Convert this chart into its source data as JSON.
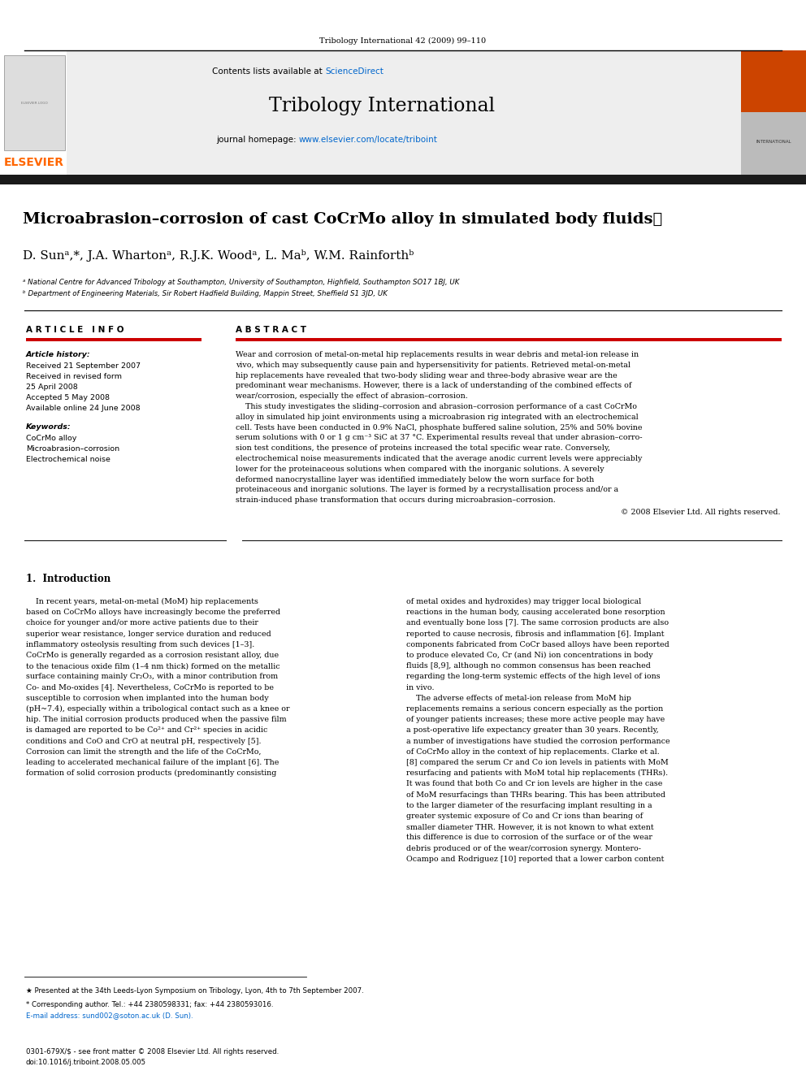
{
  "bg_color": "#ffffff",
  "page_width": 9.92,
  "page_height": 13.23,
  "journal_ref": "Tribology International 42 (2009) 99–110",
  "journal_name": "Tribology International",
  "contents_text": "Contents lists available at ScienceDirect",
  "sciencedirect_color": "#0066cc",
  "journal_homepage": "journal homepage: www.elsevier.com/locate/triboint",
  "homepage_color": "#0066cc",
  "elsevier_color": "#ff6600",
  "title": "Microabrasion–corrosion of cast CoCrMo alloy in simulated body fluids",
  "title_star": "★",
  "authors": "D. Sunᵃ,*, J.A. Whartonᵃ, R.J.K. Woodᵃ, L. Maᵇ, W.M. Rainforthᵇ",
  "affil_a": "ᵃ National Centre for Advanced Tribology at Southampton, University of Southampton, Highfield, Southampton SO17 1BJ, UK",
  "affil_b": "ᵇ Department of Engineering Materials, Sir Robert Hadfield Building, Mappin Street, Sheffield S1 3JD, UK",
  "article_info_header": "A R T I C L E   I N F O",
  "abstract_header": "A B S T R A C T",
  "article_history_label": "Article history:",
  "received": "Received 21 September 2007",
  "received_revised": "Received in revised form",
  "revised_date": "25 April 2008",
  "accepted": "Accepted 5 May 2008",
  "available": "Available online 24 June 2008",
  "keywords_label": "Keywords:",
  "keyword1": "CoCrMo alloy",
  "keyword2": "Microabrasion–corrosion",
  "keyword3": "Electrochemical noise",
  "copyright": "© 2008 Elsevier Ltd. All rights reserved.",
  "section1_title": "1.  Introduction",
  "footnote_star": "★ Presented at the 34th Leeds-Lyon Symposium on Tribology, Lyon, 4th to 7th September 2007.",
  "footnote_corresp": "* Corresponding author. Tel.: +44 2380598331; fax: +44 2380593016.",
  "footnote_email": "E-mail address: sund002@soton.ac.uk (D. Sun).",
  "footer_left": "0301-679X/$ - see front matter © 2008 Elsevier Ltd. All rights reserved.",
  "footer_doi": "doi:10.1016/j.triboint.2008.05.005",
  "section_bar_color": "#cc0000",
  "dark_bar_color": "#1a1a1a",
  "abstract_lines": [
    "Wear and corrosion of metal-on-metal hip replacements results in wear debris and metal-ion release in",
    "vivo, which may subsequently cause pain and hypersensitivity for patients. Retrieved metal-on-metal",
    "hip replacements have revealed that two-body sliding wear and three-body abrasive wear are the",
    "predominant wear mechanisms. However, there is a lack of understanding of the combined effects of",
    "wear/corrosion, especially the effect of abrasion–corrosion.",
    "    This study investigates the sliding–corrosion and abrasion–corrosion performance of a cast CoCrMo",
    "alloy in simulated hip joint environments using a microabrasion rig integrated with an electrochemical",
    "cell. Tests have been conducted in 0.9% NaCl, phosphate buffered saline solution, 25% and 50% bovine",
    "serum solutions with 0 or 1 g cm⁻³ SiC at 37 °C. Experimental results reveal that under abrasion–corro-",
    "sion test conditions, the presence of proteins increased the total specific wear rate. Conversely,",
    "electrochemical noise measurements indicated that the average anodic current levels were appreciably",
    "lower for the proteinaceous solutions when compared with the inorganic solutions. A severely",
    "deformed nanocrystalline layer was identified immediately below the worn surface for both",
    "proteinaceous and inorganic solutions. The layer is formed by a recrystallisation process and/or a",
    "strain-induced phase transformation that occurs during microabrasion–corrosion."
  ],
  "intro_lines_left": [
    "    In recent years, metal-on-metal (MoM) hip replacements",
    "based on CoCrMo alloys have increasingly become the preferred",
    "choice for younger and/or more active patients due to their",
    "superior wear resistance, longer service duration and reduced",
    "inflammatory osteolysis resulting from such devices [1–3].",
    "CoCrMo is generally regarded as a corrosion resistant alloy, due",
    "to the tenacious oxide film (1–4 nm thick) formed on the metallic",
    "surface containing mainly Cr₂O₃, with a minor contribution from",
    "Co- and Mo-oxides [4]. Nevertheless, CoCrMo is reported to be",
    "susceptible to corrosion when implanted into the human body",
    "(pH~7.4), especially within a tribological contact such as a knee or",
    "hip. The initial corrosion products produced when the passive film",
    "is damaged are reported to be Co²⁺ and Cr²⁺ species in acidic",
    "conditions and CoO and CrO at neutral pH, respectively [5].",
    "Corrosion can limit the strength and the life of the CoCrMo,",
    "leading to accelerated mechanical failure of the implant [6]. The",
    "formation of solid corrosion products (predominantly consisting"
  ],
  "intro_lines_right": [
    "of metal oxides and hydroxides) may trigger local biological",
    "reactions in the human body, causing accelerated bone resorption",
    "and eventually bone loss [7]. The same corrosion products are also",
    "reported to cause necrosis, fibrosis and inflammation [6]. Implant",
    "components fabricated from CoCr based alloys have been reported",
    "to produce elevated Co, Cr (and Ni) ion concentrations in body",
    "fluids [8,9], although no common consensus has been reached",
    "regarding the long-term systemic effects of the high level of ions",
    "in vivo.",
    "    The adverse effects of metal-ion release from MoM hip",
    "replacements remains a serious concern especially as the portion",
    "of younger patients increases; these more active people may have",
    "a post-operative life expectancy greater than 30 years. Recently,",
    "a number of investigations have studied the corrosion performance",
    "of CoCrMo alloy in the context of hip replacements. Clarke et al.",
    "[8] compared the serum Cr and Co ion levels in patients with MoM",
    "resurfacing and patients with MoM total hip replacements (THRs).",
    "It was found that both Co and Cr ion levels are higher in the case",
    "of MoM resurfacings than THRs bearing. This has been attributed",
    "to the larger diameter of the resurfacing implant resulting in a",
    "greater systemic exposure of Co and Cr ions than bearing of",
    "smaller diameter THR. However, it is not known to what extent",
    "this difference is due to corrosion of the surface or of the wear",
    "debris produced or of the wear/corrosion synergy. Montero-",
    "Ocampo and Rodriguez [10] reported that a lower carbon content"
  ]
}
